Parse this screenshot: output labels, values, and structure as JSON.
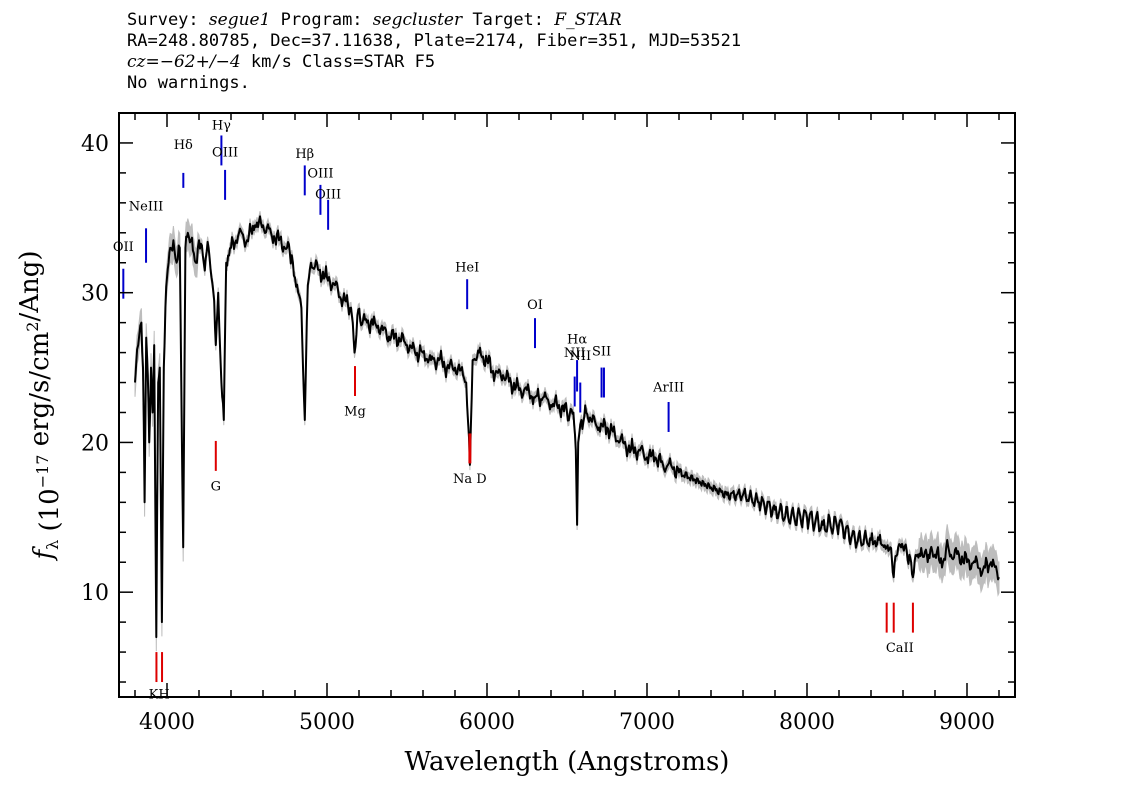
{
  "header": {
    "survey_label": "Survey:",
    "survey": "segue1",
    "program_label": "Program:",
    "program": "segcluster",
    "target_label": "Target:",
    "target": "F_STAR",
    "line2": "RA=248.80785, Dec=37.11638, Plate=2174, Fiber=351, MJD=53521",
    "cz_prefix": "cz",
    "cz_value": "=−62+/−4",
    "cz_suffix": " km/s Class=STAR F5",
    "line4": "No warnings."
  },
  "chart_data": {
    "type": "line",
    "title": "",
    "xlabel": "Wavelength (Angstroms)",
    "ylabel": "f_λ (10^-17 erg/s/cm^2/Ang)",
    "xlim": [
      3700,
      9300
    ],
    "ylim": [
      3,
      42
    ],
    "x_ticks": [
      4000,
      5000,
      6000,
      7000,
      8000,
      9000
    ],
    "y_ticks": [
      10,
      20,
      30,
      40
    ],
    "grid": false,
    "legend": "none",
    "colors": {
      "flux": "#000000",
      "error_band": "#bdbdbd",
      "emission_marker": "#0000cc",
      "absorption_marker": "#dd0000"
    },
    "series": [
      {
        "name": "flux",
        "x": [
          3800,
          3820,
          3840,
          3850,
          3860,
          3870,
          3880,
          3889,
          3900,
          3910,
          3920,
          3933,
          3945,
          3955,
          3968,
          3980,
          3990,
          4000,
          4010,
          4020,
          4040,
          4060,
          4080,
          4101,
          4115,
          4130,
          4150,
          4180,
          4200,
          4230,
          4260,
          4290,
          4305,
          4320,
          4340,
          4355,
          4370,
          4400,
          4450,
          4500,
          4550,
          4600,
          4650,
          4700,
          4750,
          4780,
          4800,
          4820,
          4840,
          4861,
          4880,
          4900,
          4950,
          5000,
          5050,
          5100,
          5150,
          5172,
          5190,
          5250,
          5300,
          5350,
          5400,
          5450,
          5500,
          5550,
          5600,
          5650,
          5700,
          5750,
          5800,
          5850,
          5870,
          5893,
          5910,
          5950,
          6000,
          6050,
          6100,
          6150,
          6200,
          6250,
          6300,
          6350,
          6400,
          6450,
          6500,
          6540,
          6555,
          6563,
          6570,
          6590,
          6620,
          6650,
          6700,
          6750,
          6800,
          6850,
          6900,
          6950,
          7000,
          7050,
          7100,
          7150,
          7200,
          7300,
          7400,
          7500,
          7600,
          7700,
          7800,
          7900,
          8000,
          8100,
          8200,
          8300,
          8400,
          8450,
          8498,
          8520,
          8542,
          8570,
          8600,
          8640,
          8662,
          8690,
          8720,
          8760,
          8800,
          8850,
          8870,
          8900,
          8950,
          9000,
          9050,
          9100,
          9150,
          9200
        ],
        "values": [
          24.0,
          26.5,
          28.0,
          25.0,
          16.0,
          27.0,
          24.5,
          20.0,
          25.0,
          22.0,
          26.5,
          7.0,
          24.0,
          25.0,
          8.0,
          25.0,
          29.0,
          31.0,
          32.0,
          33.0,
          33.5,
          32.0,
          33.0,
          13.0,
          33.0,
          34.0,
          33.5,
          32.0,
          33.5,
          32.0,
          33.0,
          30.0,
          26.5,
          30.0,
          24.0,
          21.5,
          32.0,
          33.0,
          34.0,
          33.5,
          34.5,
          34.5,
          34.0,
          33.5,
          33.0,
          32.5,
          31.0,
          30.0,
          29.0,
          21.5,
          30.5,
          32.0,
          31.5,
          31.0,
          30.5,
          29.5,
          29.0,
          26.0,
          28.5,
          28.0,
          28.0,
          27.5,
          27.0,
          27.0,
          26.5,
          26.0,
          26.0,
          25.5,
          25.5,
          25.0,
          25.0,
          24.5,
          24.0,
          18.5,
          25.5,
          26.0,
          25.5,
          24.5,
          24.5,
          24.0,
          23.5,
          23.5,
          23.0,
          23.0,
          22.5,
          22.5,
          22.0,
          22.0,
          19.5,
          14.5,
          20.0,
          21.5,
          22.0,
          21.5,
          21.0,
          21.0,
          20.5,
          20.0,
          19.5,
          19.5,
          19.0,
          19.0,
          18.5,
          18.5,
          18.0,
          17.5,
          17.0,
          16.5,
          16.5,
          16.0,
          15.5,
          15.0,
          15.0,
          14.5,
          14.5,
          13.5,
          13.5,
          13.5,
          13.0,
          13.0,
          11.0,
          13.0,
          13.0,
          12.5,
          11.0,
          12.5,
          12.5,
          12.5,
          12.5,
          12.0,
          13.0,
          12.5,
          12.5,
          12.0,
          12.0,
          11.5,
          12.0,
          11.0
        ]
      }
    ],
    "emission_lines": [
      {
        "label": "NeIII",
        "x": 3869,
        "y0": 32.0,
        "y1": 34.3,
        "label_y": 35.5
      },
      {
        "label": "OII",
        "x": 3727,
        "y0": 29.6,
        "y1": 31.6,
        "label_y": 32.8
      },
      {
        "label": "Hδ",
        "x": 4102,
        "y0": 37.0,
        "y1": 38.0,
        "label_y": 39.6
      },
      {
        "label": "Hγ",
        "x": 4340,
        "y0": 38.5,
        "y1": 40.5,
        "label_y": 40.9
      },
      {
        "label": "OIII",
        "x": 4363,
        "y0": 36.2,
        "y1": 38.2,
        "label_y": 39.1
      },
      {
        "label": "Hβ",
        "x": 4861,
        "y0": 36.5,
        "y1": 38.5,
        "label_y": 39.0
      },
      {
        "label": "OIII",
        "x": 4959,
        "y0": 35.2,
        "y1": 37.2,
        "label_y": 37.7
      },
      {
        "label": "OIII",
        "x": 5007,
        "y0": 34.2,
        "y1": 36.2,
        "label_y": 36.3
      },
      {
        "label": "HeI",
        "x": 5876,
        "y0": 28.9,
        "y1": 30.9,
        "label_y": 31.4
      },
      {
        "label": "OI",
        "x": 6300,
        "y0": 26.3,
        "y1": 28.3,
        "label_y": 28.9
      },
      {
        "label": "NII",
        "x": 6548,
        "y0": 22.4,
        "y1": 24.4,
        "label_y": 25.7
      },
      {
        "label": "Hα",
        "x": 6563,
        "y0": 23.4,
        "y1": 25.5,
        "label_y": 26.6
      },
      {
        "label": "NII",
        "x": 6583,
        "y0": 22.0,
        "y1": 24.0,
        "label_y": 25.5
      },
      {
        "label": "SII",
        "x": 6716,
        "y0": 23.0,
        "y1": 25.0,
        "label_y": 25.8
      },
      {
        "label": "SII",
        "x": 6731,
        "y0": 23.0,
        "y1": 25.0,
        "label_y": 25.8
      },
      {
        "label": "ArIII",
        "x": 7135,
        "y0": 20.7,
        "y1": 22.7,
        "label_y": 23.4
      }
    ],
    "absorption_lines": [
      {
        "label": "K",
        "x": 3934,
        "y0": 4.0,
        "y1": 6.0,
        "label_y": 2.9
      },
      {
        "label": "H",
        "x": 3969,
        "y0": 4.0,
        "y1": 6.0,
        "label_y": 2.9
      },
      {
        "label": "G",
        "x": 4305,
        "y0": 18.1,
        "y1": 20.1,
        "label_y": 16.8
      },
      {
        "label": "Mg",
        "x": 5175,
        "y0": 23.1,
        "y1": 25.1,
        "label_y": 21.8
      },
      {
        "label": "Na",
        "x": 5890,
        "y0": 18.6,
        "y1": 20.6,
        "label_y": 17.3
      },
      {
        "label": "D",
        "x": 5896,
        "y0": 18.6,
        "y1": 20.6,
        "label_y": 17.3
      },
      {
        "label": "CaII",
        "x": 8498,
        "y0": 7.3,
        "y1": 9.3,
        "label_y": 6.0
      },
      {
        "label": "CaII",
        "x": 8542,
        "y0": 7.3,
        "y1": 9.3,
        "label_y": 6.0
      },
      {
        "label": "CaII",
        "x": 8662,
        "y0": 7.3,
        "y1": 9.3,
        "label_y": 6.0
      }
    ],
    "absorption_label_text": [
      {
        "text": "KH",
        "x": 3951,
        "label_y": 2.9
      },
      {
        "text": "G",
        "x": 4305,
        "label_y": 16.8
      },
      {
        "text": "Mg",
        "x": 5175,
        "label_y": 21.8
      },
      {
        "text": "Na  D",
        "x": 5893,
        "label_y": 17.3
      },
      {
        "text": "CaII",
        "x": 8580,
        "label_y": 6.0
      }
    ]
  }
}
